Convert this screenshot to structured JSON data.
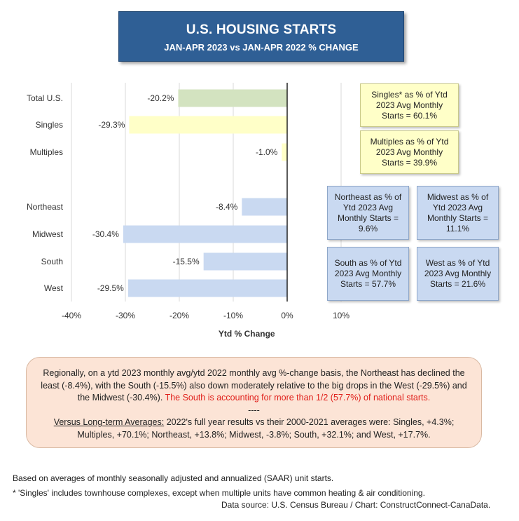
{
  "title": {
    "line1": "U.S. HOUSING STARTS",
    "line2": "JAN-APR 2023 vs JAN-APR 2022 % CHANGE"
  },
  "chart_data": {
    "type": "bar",
    "orientation": "horizontal",
    "categories": [
      "Total U.S.",
      "Singles",
      "Multiples",
      "Northeast",
      "Midwest",
      "South",
      "West"
    ],
    "values": [
      -20.2,
      -29.3,
      -1.0,
      -8.4,
      -30.4,
      -15.5,
      -29.5
    ],
    "value_labels": [
      "-20.2%",
      "-29.3%",
      "-1.0%",
      "-8.4%",
      "-30.4%",
      "-15.5%",
      "-29.5%"
    ],
    "bar_colors": [
      "#d3e3c0",
      "#ffffc8",
      "#ffffc8",
      "#c9d9f1",
      "#c9d9f1",
      "#c9d9f1",
      "#c9d9f1"
    ],
    "xlim": [
      -40,
      10
    ],
    "x_ticks": [
      -40,
      -30,
      -20,
      -10,
      0,
      10
    ],
    "x_tick_labels": [
      "-40%",
      "-30%",
      "-20%",
      "-10%",
      "0%",
      "10%"
    ],
    "xlabel": "Ytd % Change",
    "grid": true
  },
  "notes": {
    "singles": "Singles* as % of Ytd 2023 Avg Monthly Starts = 60.1%",
    "multiples": "Multiples as % of Ytd 2023 Avg Monthly Starts = 39.9%",
    "northeast": "Northeast as % of Ytd 2023 Avg Monthly Starts = 9.6%",
    "midwest": "Midwest as % of Ytd 2023 Avg Monthly Starts = 11.1%",
    "south": "South as % of Ytd 2023 Avg Monthly Starts = 57.7%",
    "west": "West as % of Ytd 2023 Avg Monthly Starts = 21.6%"
  },
  "summary": {
    "para1": "Regionally, on a ytd 2023 monthly avg/ytd 2022 monthly avg %-change basis, the Northeast has declined the least (-8.4%), with the South (-15.5%) also down moderately relative to the big drops in the West (-29.5%) and the Midwest (-30.4%).",
    "para1_red": "The South is accounting for more than 1/2 (57.7%) of national starts.",
    "divider": "----",
    "para2_underlined": "Versus Long-term Averages:",
    "para2": "2022's full year results vs their 2000-2021 averages were: Singles, +4.3%; Multiples, +70.1%; Northeast, +13.8%; Midwest, -3.8%; South, +32.1%; and West, +17.7%."
  },
  "footnotes": {
    "line1": "Based on averages of monthly seasonally adjusted and annualized (SAAR) unit starts.",
    "line2": "* 'Singles' includes townhouse complexes, except when multiple units have common heating & air conditioning.",
    "source": "Data source: U.S. Census Bureau / Chart: ConstructConnect-CanaData."
  }
}
